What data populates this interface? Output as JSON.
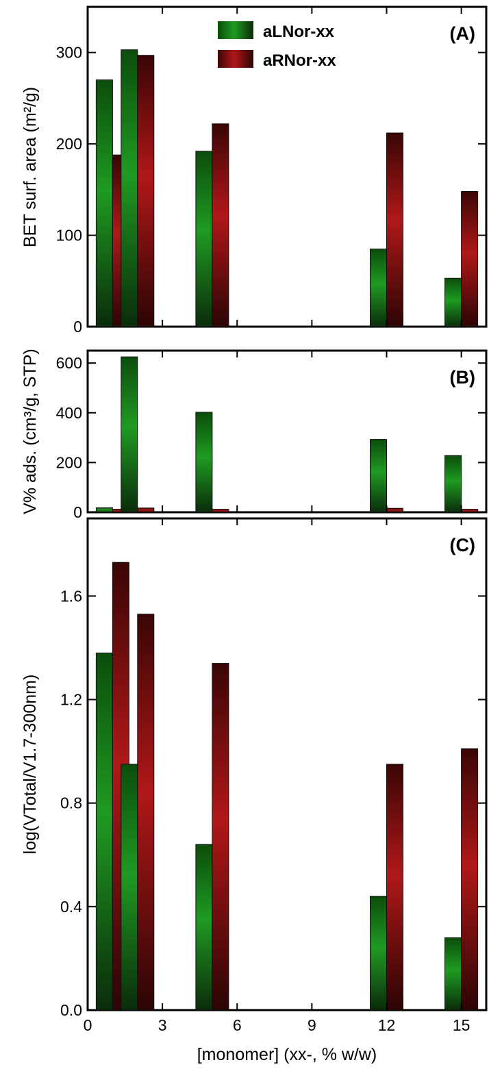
{
  "colors": {
    "aLNor": {
      "top": "#0b4d0b",
      "mid": "#1f9a22",
      "bottom": "#0a2c0a"
    },
    "aRNor": {
      "top": "#3a0505",
      "mid": "#b01818",
      "bottom": "#2c0404"
    }
  },
  "chart_data": [
    {
      "type": "bar",
      "panel": "(A)",
      "xlabel": "",
      "ylabel": "BET surf. area (m²/g)",
      "xlim": [
        0,
        16
      ],
      "ylim": [
        0,
        350
      ],
      "yticks": [
        0,
        100,
        200,
        300
      ],
      "x": [
        1,
        2,
        5,
        12,
        15
      ],
      "series": [
        {
          "name": "aLNor-xx",
          "values": [
            270,
            303,
            192,
            85,
            53
          ]
        },
        {
          "name": "aRNor-xx",
          "values": [
            188,
            297,
            222,
            212,
            148
          ]
        }
      ],
      "legend": "top"
    },
    {
      "type": "bar",
      "panel": "(B)",
      "xlabel": "",
      "ylabel": "V% ads. (cm³/g, STP)",
      "xlim": [
        0,
        16
      ],
      "ylim": [
        0,
        650
      ],
      "yticks": [
        0,
        200,
        400,
        600
      ],
      "x": [
        1,
        2,
        5,
        12,
        15
      ],
      "series": [
        {
          "name": "aLNor-xx",
          "values": [
            18,
            625,
            402,
            293,
            228
          ]
        },
        {
          "name": "aRNor-xx",
          "values": [
            12,
            17,
            12,
            16,
            12
          ]
        }
      ]
    },
    {
      "type": "bar",
      "panel": "(C)",
      "xlabel": "[monomer] (xx-, % w/w)",
      "ylabel": "log(VTotal/V1.7-300nm)",
      "xlim": [
        0,
        16
      ],
      "ylim": [
        0,
        1.9
      ],
      "yticks": [
        "0.0",
        "0.4",
        "0.8",
        "1.2",
        "1.6"
      ],
      "xticks": [
        0,
        3,
        6,
        9,
        12,
        15
      ],
      "x": [
        1,
        2,
        5,
        12,
        15
      ],
      "series": [
        {
          "name": "aLNor-xx",
          "values": [
            1.38,
            0.95,
            0.64,
            0.44,
            0.28
          ]
        },
        {
          "name": "aRNor-xx",
          "values": [
            1.73,
            1.53,
            1.34,
            0.95,
            1.01
          ]
        }
      ]
    }
  ]
}
